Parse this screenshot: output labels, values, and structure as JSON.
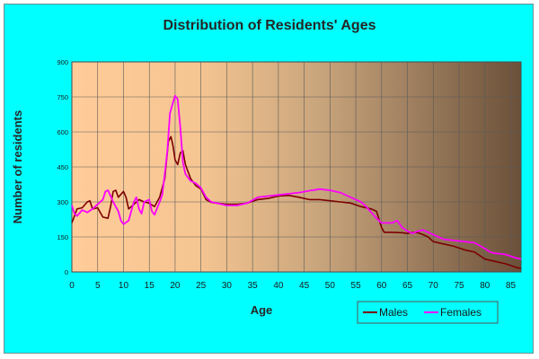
{
  "chart_data": {
    "type": "line",
    "title": "Distribution of Residents' Ages",
    "xlabel": "Age",
    "ylabel": "Number of residents",
    "xlim": [
      0,
      87
    ],
    "ylim": [
      0,
      900
    ],
    "x_ticks": [
      "0",
      "5",
      "10",
      "15",
      "20",
      "25",
      "30",
      "35",
      "40",
      "45",
      "50",
      "55",
      "60",
      "65",
      "70",
      "75",
      "80",
      "85"
    ],
    "y_ticks": [
      "0",
      "150",
      "300",
      "450",
      "600",
      "750",
      "900"
    ],
    "grid": true,
    "legend": "bottom-right",
    "series": [
      {
        "name": "Males",
        "color": "#7B0000",
        "points": [
          [
            0,
            210
          ],
          [
            0.5,
            240
          ],
          [
            1,
            270
          ],
          [
            2,
            275
          ],
          [
            3,
            300
          ],
          [
            3.5,
            305
          ],
          [
            4,
            270
          ],
          [
            5,
            275
          ],
          [
            6,
            235
          ],
          [
            7,
            230
          ],
          [
            7.5,
            280
          ],
          [
            8,
            345
          ],
          [
            8.5,
            350
          ],
          [
            9,
            320
          ],
          [
            10,
            345
          ],
          [
            10.5,
            320
          ],
          [
            11,
            270
          ],
          [
            12,
            290
          ],
          [
            13,
            310
          ],
          [
            14,
            300
          ],
          [
            15,
            295
          ],
          [
            16,
            280
          ],
          [
            17,
            320
          ],
          [
            18,
            400
          ],
          [
            18.7,
            560
          ],
          [
            19.2,
            580
          ],
          [
            19.6,
            540
          ],
          [
            20,
            480
          ],
          [
            20.5,
            460
          ],
          [
            21,
            510
          ],
          [
            21.5,
            520
          ],
          [
            22,
            460
          ],
          [
            23,
            400
          ],
          [
            24,
            370
          ],
          [
            25,
            355
          ],
          [
            26,
            310
          ],
          [
            27,
            298
          ],
          [
            28,
            295
          ],
          [
            30,
            290
          ],
          [
            32,
            290
          ],
          [
            34,
            295
          ],
          [
            36,
            310
          ],
          [
            38,
            315
          ],
          [
            40,
            325
          ],
          [
            42,
            328
          ],
          [
            44,
            320
          ],
          [
            46,
            310
          ],
          [
            48,
            310
          ],
          [
            50,
            305
          ],
          [
            52,
            300
          ],
          [
            54,
            295
          ],
          [
            56,
            280
          ],
          [
            58,
            270
          ],
          [
            59,
            260
          ],
          [
            60,
            190
          ],
          [
            60.5,
            170
          ],
          [
            62,
            170
          ],
          [
            64,
            168
          ],
          [
            65,
            165
          ],
          [
            66,
            170
          ],
          [
            67,
            168
          ],
          [
            68,
            160
          ],
          [
            69,
            150
          ],
          [
            70,
            130
          ],
          [
            72,
            120
          ],
          [
            74,
            110
          ],
          [
            76,
            95
          ],
          [
            78,
            85
          ],
          [
            80,
            55
          ],
          [
            82,
            45
          ],
          [
            84,
            35
          ],
          [
            86,
            20
          ],
          [
            87,
            15
          ]
        ]
      },
      {
        "name": "Females",
        "color": "#FF00FF",
        "points": [
          [
            0,
            285
          ],
          [
            0.5,
            250
          ],
          [
            1,
            240
          ],
          [
            2,
            265
          ],
          [
            3,
            255
          ],
          [
            4,
            270
          ],
          [
            5,
            290
          ],
          [
            6,
            310
          ],
          [
            6.5,
            345
          ],
          [
            7,
            350
          ],
          [
            8,
            300
          ],
          [
            9,
            260
          ],
          [
            9.5,
            220
          ],
          [
            10,
            205
          ],
          [
            11,
            220
          ],
          [
            12,
            300
          ],
          [
            12.5,
            320
          ],
          [
            13,
            270
          ],
          [
            13.5,
            250
          ],
          [
            14,
            300
          ],
          [
            15,
            310
          ],
          [
            15.5,
            260
          ],
          [
            16,
            245
          ],
          [
            17,
            300
          ],
          [
            17.5,
            330
          ],
          [
            18,
            420
          ],
          [
            18.5,
            520
          ],
          [
            19,
            680
          ],
          [
            19.5,
            720
          ],
          [
            20,
            755
          ],
          [
            20.5,
            740
          ],
          [
            21,
            620
          ],
          [
            21.5,
            470
          ],
          [
            22,
            420
          ],
          [
            23,
            390
          ],
          [
            24,
            380
          ],
          [
            25,
            360
          ],
          [
            26,
            320
          ],
          [
            27,
            300
          ],
          [
            28,
            295
          ],
          [
            30,
            285
          ],
          [
            32,
            285
          ],
          [
            34,
            295
          ],
          [
            36,
            320
          ],
          [
            38,
            325
          ],
          [
            40,
            330
          ],
          [
            42,
            335
          ],
          [
            44,
            340
          ],
          [
            46,
            348
          ],
          [
            48,
            355
          ],
          [
            50,
            350
          ],
          [
            52,
            340
          ],
          [
            54,
            320
          ],
          [
            56,
            300
          ],
          [
            57,
            280
          ],
          [
            58,
            255
          ],
          [
            59,
            230
          ],
          [
            60,
            210
          ],
          [
            62,
            210
          ],
          [
            63,
            220
          ],
          [
            64,
            190
          ],
          [
            65,
            175
          ],
          [
            66,
            165
          ],
          [
            67,
            175
          ],
          [
            68,
            180
          ],
          [
            69,
            170
          ],
          [
            70,
            160
          ],
          [
            72,
            140
          ],
          [
            74,
            135
          ],
          [
            76,
            130
          ],
          [
            78,
            125
          ],
          [
            80,
            100
          ],
          [
            81,
            85
          ],
          [
            82,
            80
          ],
          [
            84,
            75
          ],
          [
            86,
            60
          ],
          [
            87,
            55
          ]
        ]
      }
    ]
  }
}
